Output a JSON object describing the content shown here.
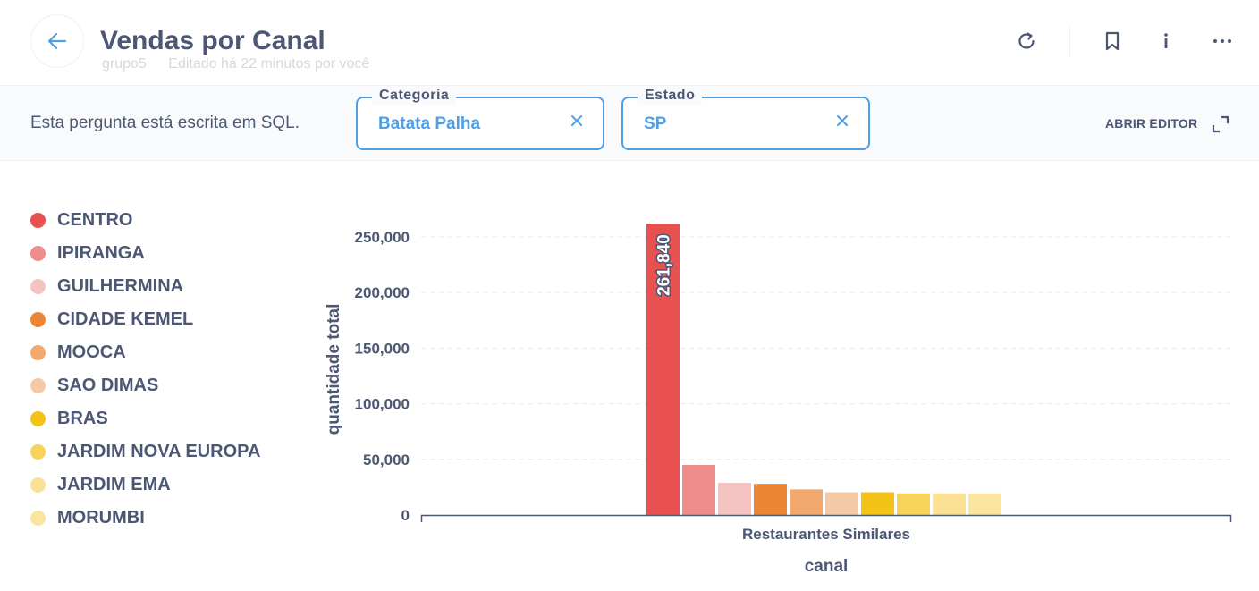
{
  "header": {
    "title": "Vendas por Canal",
    "collection": "grupo5",
    "edited": "Editado há 22 minutos por você"
  },
  "filterbar": {
    "sql_note": "Esta pergunta está escrita em SQL.",
    "filters": [
      {
        "label": "Categoria",
        "value": "Batata Palha"
      },
      {
        "label": "Estado",
        "value": "SP"
      }
    ],
    "open_editor": "ABRIR EDITOR"
  },
  "chart_data": {
    "type": "bar",
    "categories": [
      "Restaurantes Similares"
    ],
    "series": [
      {
        "name": "CENTRO",
        "values": [
          261840
        ],
        "color": "#e8514f"
      },
      {
        "name": "IPIRANGA",
        "values": [
          45000
        ],
        "color": "#ef8c8c"
      },
      {
        "name": "GUILHERMINA",
        "values": [
          29000
        ],
        "color": "#f6c4c0"
      },
      {
        "name": "CIDADE KEMEL",
        "values": [
          28000
        ],
        "color": "#ed8534"
      },
      {
        "name": "MOOCA",
        "values": [
          23000
        ],
        "color": "#f3a96e"
      },
      {
        "name": "SAO DIMAS",
        "values": [
          20500
        ],
        "color": "#f6c9a6"
      },
      {
        "name": "BRAS",
        "values": [
          20500
        ],
        "color": "#f4c318"
      },
      {
        "name": "JARDIM NOVA EUROPA",
        "values": [
          19500
        ],
        "color": "#f7d35a"
      },
      {
        "name": "JARDIM EMA",
        "values": [
          19500
        ],
        "color": "#fae193"
      },
      {
        "name": "MORUMBI",
        "values": [
          19500
        ],
        "color": "#fae59e"
      }
    ],
    "data_label": "261,840",
    "xlabel": "canal",
    "ylabel": "quantidade total",
    "yticks": [
      "0",
      "50,000",
      "100,000",
      "150,000",
      "200,000",
      "250,000"
    ],
    "ylim": [
      0,
      262000
    ],
    "grid": true,
    "legend": "left"
  }
}
